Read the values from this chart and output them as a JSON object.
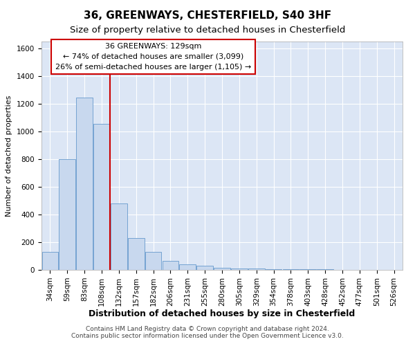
{
  "title": "36, GREENWAYS, CHESTERFIELD, S40 3HF",
  "subtitle": "Size of property relative to detached houses in Chesterfield",
  "xlabel": "Distribution of detached houses by size in Chesterfield",
  "ylabel": "Number of detached properties",
  "categories": [
    "34sqm",
    "59sqm",
    "83sqm",
    "108sqm",
    "132sqm",
    "157sqm",
    "182sqm",
    "206sqm",
    "231sqm",
    "255sqm",
    "280sqm",
    "305sqm",
    "329sqm",
    "354sqm",
    "378sqm",
    "403sqm",
    "428sqm",
    "452sqm",
    "477sqm",
    "501sqm",
    "526sqm"
  ],
  "values": [
    130,
    800,
    1245,
    1055,
    480,
    232,
    128,
    65,
    40,
    28,
    15,
    12,
    10,
    5,
    4,
    3,
    3,
    2,
    2,
    1,
    1
  ],
  "bar_color": "#c8d8ee",
  "bar_edge_color": "#6699cc",
  "annotation_line1": "36 GREENWAYS: 129sqm",
  "annotation_line2": "← 74% of detached houses are smaller (3,099)",
  "annotation_line3": "26% of semi-detached houses are larger (1,105) →",
  "annotation_box_color": "#ffffff",
  "annotation_box_edge": "#cc0000",
  "vline_color": "#cc0000",
  "vline_x": 3.5,
  "ylim": [
    0,
    1650
  ],
  "yticks": [
    0,
    200,
    400,
    600,
    800,
    1000,
    1200,
    1400,
    1600
  ],
  "background_color": "#dce6f5",
  "grid_color": "#ffffff",
  "fig_bg_color": "#ffffff",
  "footer_text": "Contains HM Land Registry data © Crown copyright and database right 2024.\nContains public sector information licensed under the Open Government Licence v3.0.",
  "title_fontsize": 11,
  "subtitle_fontsize": 9.5,
  "xlabel_fontsize": 9,
  "ylabel_fontsize": 8,
  "tick_fontsize": 7.5,
  "annotation_fontsize": 8,
  "footer_fontsize": 6.5
}
